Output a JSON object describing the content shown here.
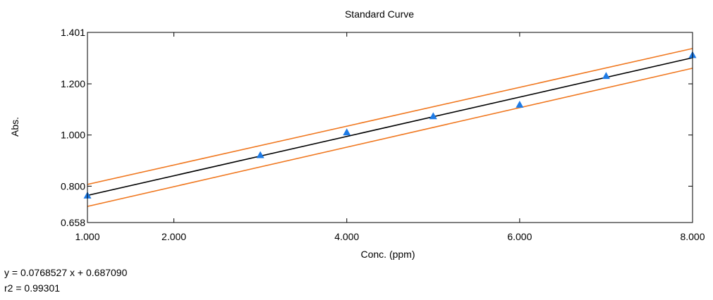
{
  "chart_data": {
    "type": "line",
    "title": "Standard Curve",
    "xlabel": "Conc. (ppm)",
    "ylabel": "Abs.",
    "xlim": [
      1.0,
      8.0
    ],
    "ylim": [
      0.658,
      1.401
    ],
    "x_ticks": [
      "1.000",
      "2.000",
      "4.000",
      "6.000",
      "8.000"
    ],
    "y_ticks": [
      "0.658",
      "0.800",
      "1.000",
      "1.200",
      "1.401"
    ],
    "x_tick_values": [
      1.0,
      2.0,
      4.0,
      6.0,
      8.0
    ],
    "y_tick_values": [
      0.658,
      0.8,
      1.0,
      1.2,
      1.401
    ],
    "grid": false,
    "legend": "none",
    "points": {
      "x": [
        1.0,
        3.0,
        4.0,
        5.0,
        6.0,
        7.0,
        8.0
      ],
      "y": [
        0.764,
        0.922,
        1.011,
        1.074,
        1.119,
        1.231,
        1.313
      ]
    },
    "fit_line": {
      "slope": 0.0768527,
      "intercept": 0.68709
    },
    "confidence_band": {
      "x": [
        1.0,
        8.0
      ],
      "upper": [
        0.807,
        1.338
      ],
      "lower": [
        0.721,
        1.261
      ]
    },
    "equation": "y = 0.0768527 x + 0.687090",
    "r2": "r2 = 0.99301",
    "colors": {
      "points": "#1e7be6",
      "fit_line": "#000000",
      "band": "#f07820",
      "axes": "#000000"
    }
  }
}
